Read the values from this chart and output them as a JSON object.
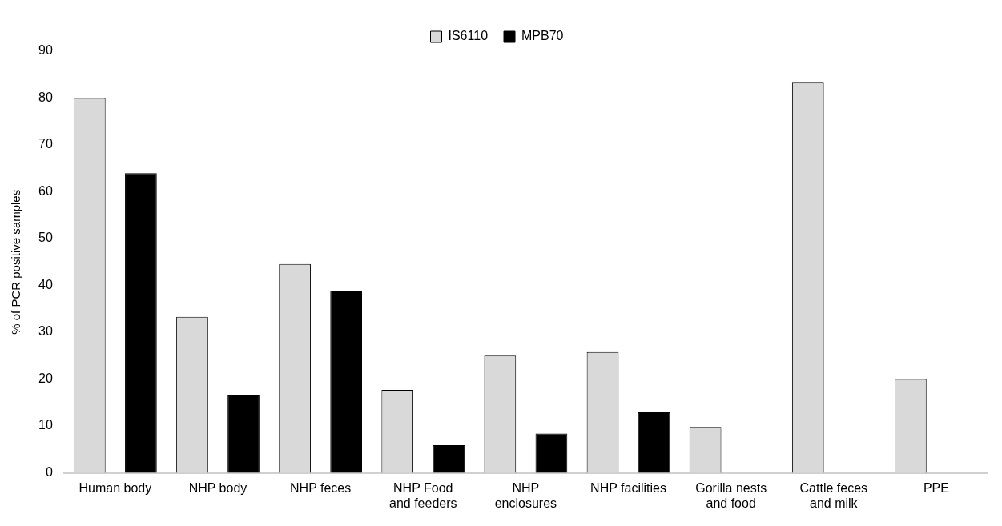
{
  "chart_data": {
    "type": "bar",
    "ylabel": "% of PCR positive samples",
    "categories": [
      "Human body",
      "NHP body",
      "NHP feces",
      "NHP Food\nand feeders",
      "NHP\nenclosures",
      "NHP facilities",
      "Gorilla nests\nand food",
      "Cattle feces\nand milk",
      "PPE"
    ],
    "series": [
      {
        "name": "IS6110",
        "color": "#d9d9d9",
        "values": [
          80,
          33.3,
          44.6,
          17.7,
          25,
          25.8,
          9.8,
          83.3,
          20
        ]
      },
      {
        "name": "MPB70",
        "color": "#000000",
        "values": [
          64,
          16.7,
          38.9,
          5.9,
          8.4,
          12.9,
          null,
          null,
          null
        ]
      }
    ],
    "ylim": [
      0,
      90
    ],
    "yticks": [
      0,
      10,
      20,
      30,
      40,
      50,
      60,
      70,
      80,
      90
    ],
    "grid": false,
    "legend": "top"
  }
}
